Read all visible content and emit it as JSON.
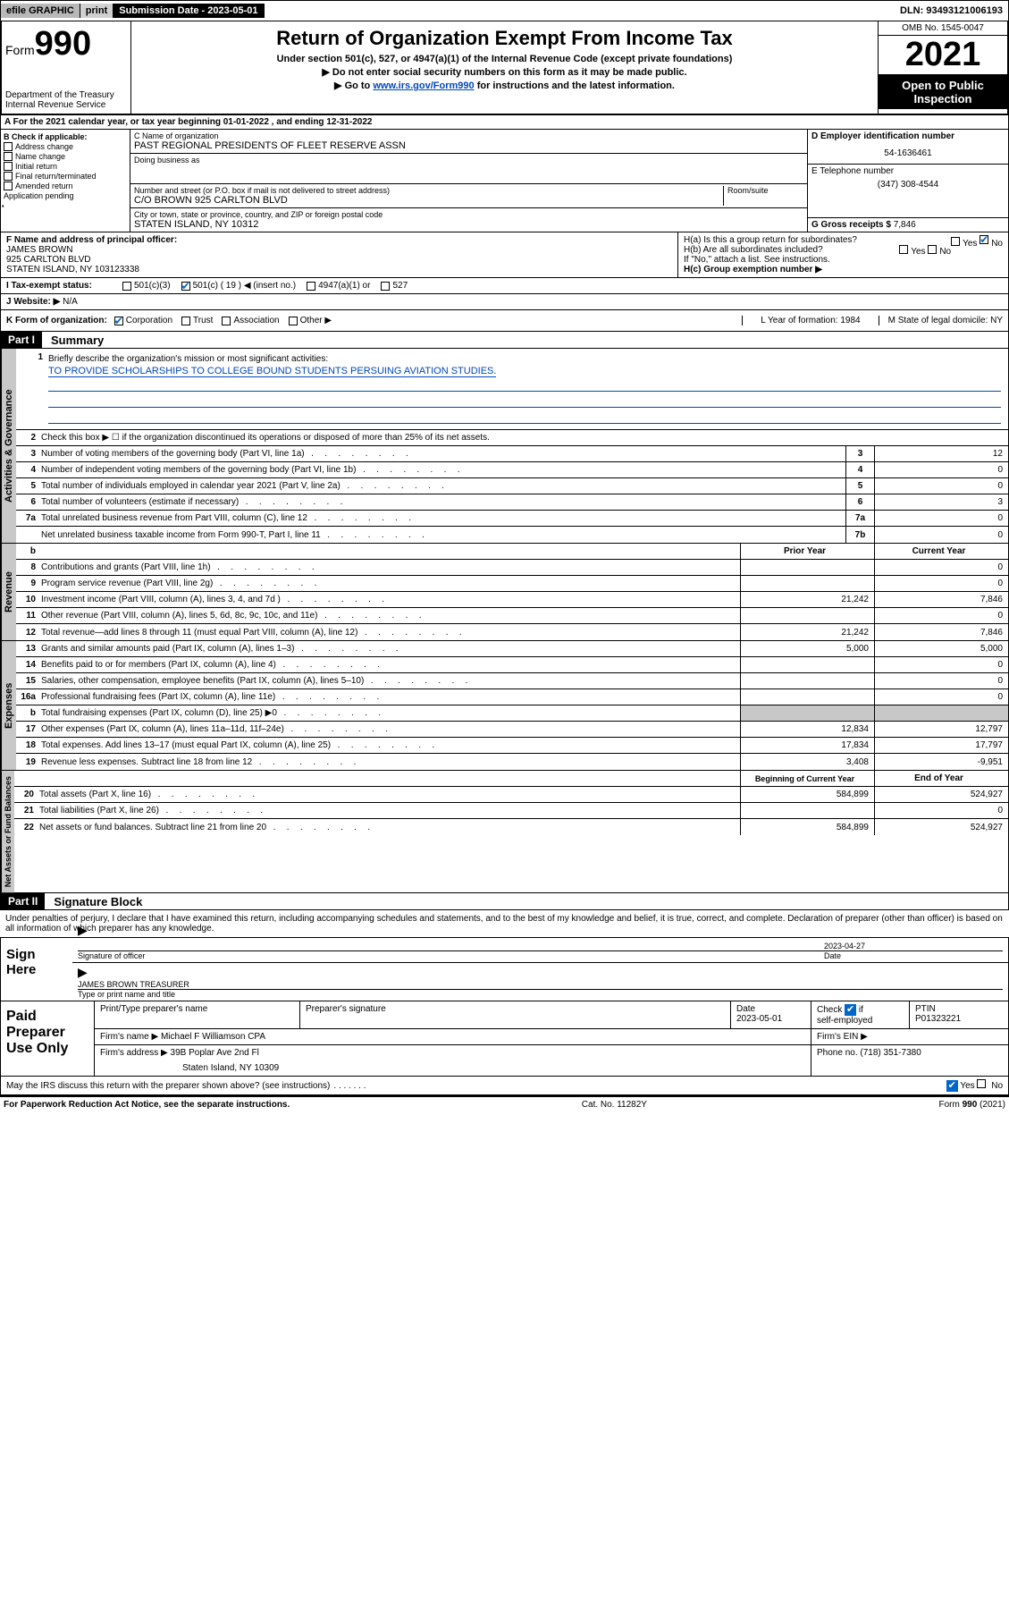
{
  "topbar": {
    "efile": "efile GRAPHIC",
    "print": "print",
    "sub_date_label": "Submission Date - 2023-05-01",
    "dln": "DLN: 93493121006193"
  },
  "header": {
    "form_prefix": "Form",
    "form_num": "990",
    "title": "Return of Organization Exempt From Income Tax",
    "sub1": "Under section 501(c), 527, or 4947(a)(1) of the Internal Revenue Code (except private foundations)",
    "sub2": "▶ Do not enter social security numbers on this form as it may be made public.",
    "sub3_pre": "▶ Go to ",
    "sub3_link": "www.irs.gov/Form990",
    "sub3_post": " for instructions and the latest information.",
    "dept": "Department of the Treasury\nInternal Revenue Service",
    "omb": "OMB No. 1545-0047",
    "year": "2021",
    "open_pub": "Open to Public Inspection"
  },
  "row_a": "A For the 2021 calendar year, or tax year beginning 01-01-2022   , and ending 12-31-2022",
  "col_b": {
    "header": "B Check if applicable:",
    "items": [
      "Address change",
      "Name change",
      "Initial return",
      "Final return/terminated",
      "Amended return",
      "Application pending"
    ]
  },
  "col_c": {
    "name_label": "C Name of organization",
    "name": "PAST REGIONAL PRESIDENTS OF FLEET RESERVE ASSN",
    "dba_label": "Doing business as",
    "dba": "",
    "addr_label": "Number and street (or P.O. box if mail is not delivered to street address)",
    "room_label": "Room/suite",
    "addr": "C/O BROWN 925 CARLTON BLVD",
    "city_label": "City or town, state or province, country, and ZIP or foreign postal code",
    "city": "STATEN ISLAND, NY  10312"
  },
  "col_d": {
    "ein_label": "D Employer identification number",
    "ein": "54-1636461",
    "phone_label": "E Telephone number",
    "phone": "(347) 308-4544",
    "gross_label": "G Gross receipts $",
    "gross": "7,846"
  },
  "row_f": {
    "label": "F  Name and address of principal officer:",
    "name": "JAMES BROWN",
    "addr1": "925 CARLTON BLVD",
    "addr2": "STATEN ISLAND, NY  103123338"
  },
  "row_h": {
    "ha": "H(a)  Is this a group return for subordinates?",
    "hb": "H(b)  Are all subordinates included?",
    "hnote": "If \"No,\" attach a list. See instructions.",
    "hc": "H(c)  Group exemption number ▶"
  },
  "row_i": {
    "label": "I     Tax-exempt status:",
    "o1": "501(c)(3)",
    "o2": "501(c) ( 19 ) ◀ (insert no.)",
    "o3": "4947(a)(1) or",
    "o4": "527"
  },
  "row_j": {
    "label": "J    Website: ▶",
    "val": "N/A"
  },
  "row_k": {
    "label": "K Form of organization:",
    "opts": [
      "Corporation",
      "Trust",
      "Association",
      "Other ▶"
    ],
    "l": "L Year of formation: 1984",
    "m": "M State of legal domicile: NY"
  },
  "parts": {
    "p1": "Part I",
    "p1_title": "Summary",
    "p2": "Part II",
    "p2_title": "Signature Block"
  },
  "summary": {
    "q1": "Briefly describe the organization's mission or most significant activities:",
    "q1_val": "TO PROVIDE SCHOLARSHIPS TO COLLEGE BOUND STUDENTS PERSUING AVIATION STUDIES.",
    "q2": "Check this box ▶ ☐  if the organization discontinued its operations or disposed of more than 25% of its net assets.",
    "lines_ag": [
      {
        "n": "3",
        "t": "Number of voting members of the governing body (Part VI, line 1a)",
        "box": "3",
        "v": "12"
      },
      {
        "n": "4",
        "t": "Number of independent voting members of the governing body (Part VI, line 1b)",
        "box": "4",
        "v": "0"
      },
      {
        "n": "5",
        "t": "Total number of individuals employed in calendar year 2021 (Part V, line 2a)",
        "box": "5",
        "v": "0"
      },
      {
        "n": "6",
        "t": "Total number of volunteers (estimate if necessary)",
        "box": "6",
        "v": "3"
      },
      {
        "n": "7a",
        "t": "Total unrelated business revenue from Part VIII, column (C), line 12",
        "box": "7a",
        "v": "0"
      },
      {
        "n": "",
        "t": "Net unrelated business taxable income from Form 990-T, Part I, line 11",
        "box": "7b",
        "v": "0"
      }
    ],
    "col_hdr_prior": "Prior Year",
    "col_hdr_curr": "Current Year",
    "lines_rev": [
      {
        "n": "8",
        "t": "Contributions and grants (Part VIII, line 1h)",
        "p": "",
        "c": "0"
      },
      {
        "n": "9",
        "t": "Program service revenue (Part VIII, line 2g)",
        "p": "",
        "c": "0"
      },
      {
        "n": "10",
        "t": "Investment income (Part VIII, column (A), lines 3, 4, and 7d )",
        "p": "21,242",
        "c": "7,846"
      },
      {
        "n": "11",
        "t": "Other revenue (Part VIII, column (A), lines 5, 6d, 8c, 9c, 10c, and 11e)",
        "p": "",
        "c": "0"
      },
      {
        "n": "12",
        "t": "Total revenue—add lines 8 through 11 (must equal Part VIII, column (A), line 12)",
        "p": "21,242",
        "c": "7,846"
      }
    ],
    "lines_exp": [
      {
        "n": "13",
        "t": "Grants and similar amounts paid (Part IX, column (A), lines 1–3)",
        "p": "5,000",
        "c": "5,000"
      },
      {
        "n": "14",
        "t": "Benefits paid to or for members (Part IX, column (A), line 4)",
        "p": "",
        "c": "0"
      },
      {
        "n": "15",
        "t": "Salaries, other compensation, employee benefits (Part IX, column (A), lines 5–10)",
        "p": "",
        "c": "0"
      },
      {
        "n": "16a",
        "t": "Professional fundraising fees (Part IX, column (A), line 11e)",
        "p": "",
        "c": "0"
      },
      {
        "n": "b",
        "t": "Total fundraising expenses (Part IX, column (D), line 25) ▶0",
        "p": "SHADE",
        "c": "SHADE"
      },
      {
        "n": "17",
        "t": "Other expenses (Part IX, column (A), lines 11a–11d, 11f–24e)",
        "p": "12,834",
        "c": "12,797"
      },
      {
        "n": "18",
        "t": "Total expenses. Add lines 13–17 (must equal Part IX, column (A), line 25)",
        "p": "17,834",
        "c": "17,797"
      },
      {
        "n": "19",
        "t": "Revenue less expenses. Subtract line 18 from line 12",
        "p": "3,408",
        "c": "-9,951"
      }
    ],
    "col_hdr_begin": "Beginning of Current Year",
    "col_hdr_end": "End of Year",
    "lines_na": [
      {
        "n": "20",
        "t": "Total assets (Part X, line 16)",
        "p": "584,899",
        "c": "524,927"
      },
      {
        "n": "21",
        "t": "Total liabilities (Part X, line 26)",
        "p": "",
        "c": "0"
      },
      {
        "n": "22",
        "t": "Net assets or fund balances. Subtract line 21 from line 20",
        "p": "584,899",
        "c": "524,927"
      }
    ]
  },
  "vtabs": {
    "ag": "Activities & Governance",
    "rev": "Revenue",
    "exp": "Expenses",
    "na": "Net Assets or Fund Balances"
  },
  "sig": {
    "declare": "Under penalties of perjury, I declare that I have examined this return, including accompanying schedules and statements, and to the best of my knowledge and belief, it is true, correct, and complete. Declaration of preparer (other than officer) is based on all information of which preparer has any knowledge.",
    "sign_here": "Sign Here",
    "sig_officer": "Signature of officer",
    "date_val": "2023-04-27",
    "date_label": "Date",
    "name_title": "JAMES BROWN  TREASURER",
    "name_title_label": "Type or print name and title"
  },
  "paid": {
    "title": "Paid Preparer Use Only",
    "h1": "Print/Type preparer's name",
    "h2": "Preparer's signature",
    "h3": "Date",
    "h3v": "2023-05-01",
    "h4": "Check ☑ if self-employed",
    "h5": "PTIN",
    "h5v": "P01323221",
    "firm_name_l": "Firm's name    ▶",
    "firm_name": "Michael F Williamson CPA",
    "firm_ein_l": "Firm's EIN ▶",
    "firm_addr_l": "Firm's address ▶",
    "firm_addr1": "39B Poplar Ave 2nd Fl",
    "firm_addr2": "Staten Island, NY  10309",
    "firm_phone_l": "Phone no.",
    "firm_phone": "(718) 351-7380"
  },
  "may": "May the IRS discuss this return with the preparer shown above? (see instructions)",
  "footer": {
    "l": "For Paperwork Reduction Act Notice, see the separate instructions.",
    "c": "Cat. No. 11282Y",
    "r": "Form 990 (2021)"
  },
  "colors": {
    "link": "#0047bb",
    "check": "#0066cc",
    "shade": "#c8c8c8"
  }
}
